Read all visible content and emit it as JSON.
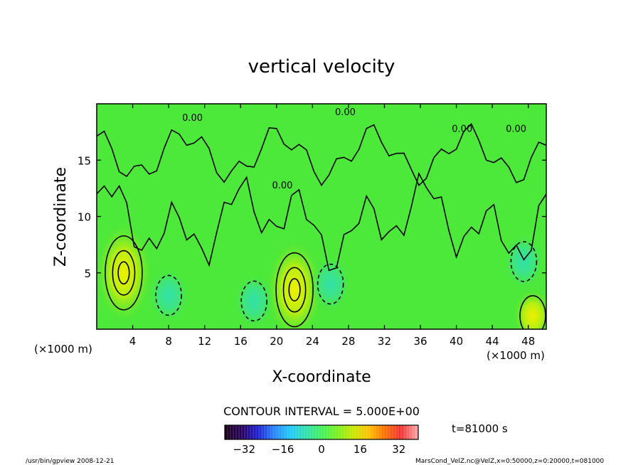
{
  "chart_data": {
    "type": "heatmap",
    "title": "vertical velocity",
    "xlabel": "X-coordinate",
    "ylabel": "Z-coordinate",
    "x_unit_left": "(×1000 m)",
    "x_unit_right": "(×1000 m)",
    "xlim": [
      0,
      50
    ],
    "ylim": [
      0,
      20
    ],
    "x_ticks": [
      4,
      8,
      12,
      16,
      20,
      24,
      28,
      32,
      36,
      40,
      44,
      48
    ],
    "y_ticks": [
      5,
      10,
      15
    ],
    "contour_interval_text": "CONTOUR INTERVAL = 5.000E+00",
    "time_text": "t=81000 s",
    "colorbar": {
      "min": -40,
      "max": 40,
      "ticks": [
        -32,
        -16,
        0,
        16,
        32
      ],
      "colors": [
        "#1a001a",
        "#2a0060",
        "#1f1fd0",
        "#2a80ff",
        "#20c8ff",
        "#30e0b0",
        "#40f060",
        "#7cf020",
        "#c8e800",
        "#ffc000",
        "#ff7000",
        "#f03030",
        "#ffa0a0"
      ]
    },
    "background_value": 0,
    "background_color": "#4ce83a",
    "features": [
      {
        "kind": "updraft",
        "x": 3.0,
        "z": 5.0,
        "label_value": 15
      },
      {
        "kind": "updraft",
        "x": 22.0,
        "z": 3.5,
        "label_value": 15
      },
      {
        "kind": "downdraft",
        "x": 8.0,
        "z": 3.0,
        "label_value": -5
      },
      {
        "kind": "downdraft",
        "x": 17.5,
        "z": 2.5,
        "label_value": -5
      },
      {
        "kind": "downdraft",
        "x": 26.0,
        "z": 4.0,
        "label_value": -5
      },
      {
        "kind": "downdraft",
        "x": 47.5,
        "z": 6.0,
        "label_value": -5
      },
      {
        "kind": "updraft",
        "x": 48.5,
        "z": 1.2,
        "label_value": 5
      }
    ],
    "contour_labels": [
      "0.00",
      "0.00",
      "0.00",
      "0.00",
      "0.00"
    ],
    "grid": false
  },
  "footer": {
    "left": "/usr/bin/gpview   2008-12-21",
    "right": "MarsCond_VelZ.nc@VelZ,x=0:50000,z=0:20000,t=081000"
  }
}
